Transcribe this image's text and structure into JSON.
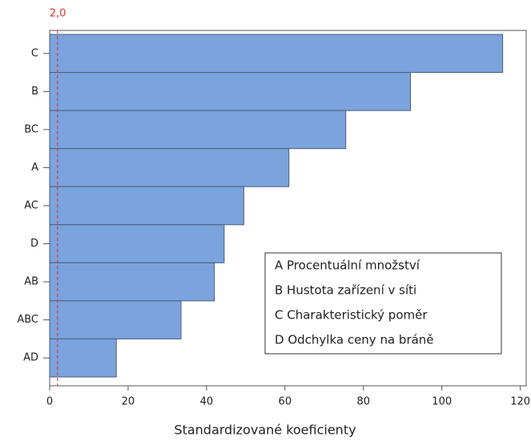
{
  "chart_data": {
    "type": "bar",
    "orientation": "horizontal",
    "xlabel": "Standardizované koeficienty",
    "categories": [
      "C",
      "B",
      "BC",
      "A",
      "AC",
      "D",
      "AB",
      "ABC",
      "AD"
    ],
    "values": [
      115.5,
      92,
      75.5,
      61,
      49.5,
      44.5,
      42,
      33.5,
      17
    ],
    "color": "#7ba3dc",
    "xlim": [
      0,
      121.5
    ],
    "xticks": [
      0,
      20,
      40,
      60,
      80,
      100,
      120
    ],
    "reference_line": {
      "value": 2.0,
      "label": "2,0",
      "color": "#e03030"
    },
    "legend_notes": [
      "A   Procentuální množství",
      "B   Hustota zařízení v síti",
      "C   Charakteristický poměr",
      "D   Odchylka ceny na bráně"
    ]
  }
}
